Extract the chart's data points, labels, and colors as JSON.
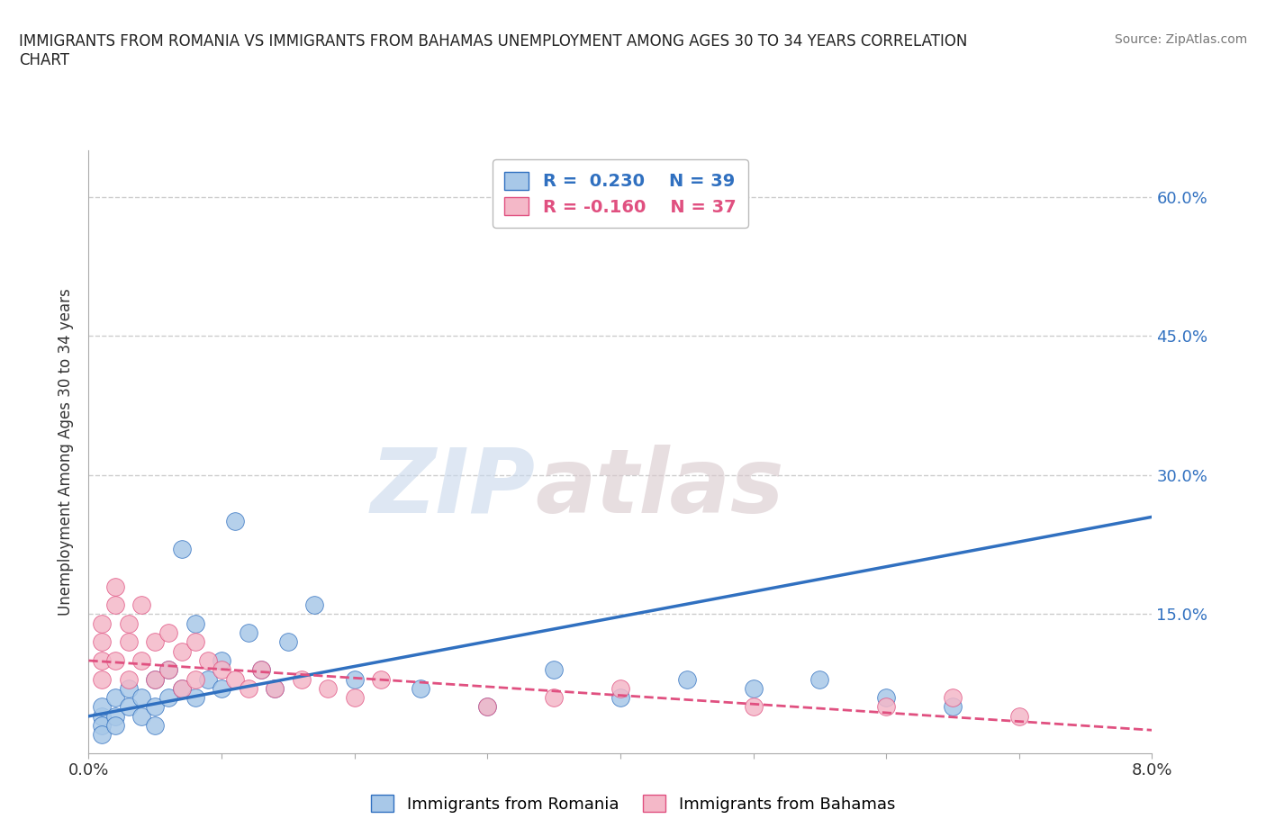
{
  "title": "IMMIGRANTS FROM ROMANIA VS IMMIGRANTS FROM BAHAMAS UNEMPLOYMENT AMONG AGES 30 TO 34 YEARS CORRELATION\nCHART",
  "source": "Source: ZipAtlas.com",
  "ylabel": "Unemployment Among Ages 30 to 34 years",
  "xlim": [
    0.0,
    0.08
  ],
  "ylim": [
    0.0,
    0.65
  ],
  "xticks": [
    0.0,
    0.01,
    0.02,
    0.03,
    0.04,
    0.05,
    0.06,
    0.07,
    0.08
  ],
  "ytick_labels": [
    "",
    "15.0%",
    "30.0%",
    "45.0%",
    "60.0%"
  ],
  "ytick_positions": [
    0.0,
    0.15,
    0.3,
    0.45,
    0.6
  ],
  "romania_color": "#a8c8e8",
  "bahamas_color": "#f4b8c8",
  "romania_line_color": "#3070c0",
  "bahamas_line_color": "#e05080",
  "romania_R": 0.23,
  "romania_N": 39,
  "bahamas_R": -0.16,
  "bahamas_N": 37,
  "romania_scatter_x": [
    0.001,
    0.001,
    0.001,
    0.001,
    0.002,
    0.002,
    0.002,
    0.003,
    0.003,
    0.004,
    0.004,
    0.005,
    0.005,
    0.005,
    0.006,
    0.006,
    0.007,
    0.007,
    0.008,
    0.008,
    0.009,
    0.01,
    0.01,
    0.011,
    0.012,
    0.013,
    0.014,
    0.015,
    0.017,
    0.02,
    0.025,
    0.03,
    0.035,
    0.04,
    0.045,
    0.05,
    0.055,
    0.06,
    0.065
  ],
  "romania_scatter_y": [
    0.04,
    0.03,
    0.05,
    0.02,
    0.04,
    0.06,
    0.03,
    0.05,
    0.07,
    0.04,
    0.06,
    0.05,
    0.08,
    0.03,
    0.06,
    0.09,
    0.07,
    0.22,
    0.14,
    0.06,
    0.08,
    0.07,
    0.1,
    0.25,
    0.13,
    0.09,
    0.07,
    0.12,
    0.16,
    0.08,
    0.07,
    0.05,
    0.09,
    0.06,
    0.08,
    0.07,
    0.08,
    0.06,
    0.05
  ],
  "bahamas_scatter_x": [
    0.001,
    0.001,
    0.001,
    0.001,
    0.002,
    0.002,
    0.002,
    0.003,
    0.003,
    0.003,
    0.004,
    0.004,
    0.005,
    0.005,
    0.006,
    0.006,
    0.007,
    0.007,
    0.008,
    0.008,
    0.009,
    0.01,
    0.011,
    0.012,
    0.013,
    0.014,
    0.016,
    0.018,
    0.02,
    0.022,
    0.03,
    0.035,
    0.04,
    0.05,
    0.06,
    0.065,
    0.07
  ],
  "bahamas_scatter_y": [
    0.1,
    0.14,
    0.08,
    0.12,
    0.16,
    0.1,
    0.18,
    0.12,
    0.08,
    0.14,
    0.1,
    0.16,
    0.12,
    0.08,
    0.13,
    0.09,
    0.11,
    0.07,
    0.12,
    0.08,
    0.1,
    0.09,
    0.08,
    0.07,
    0.09,
    0.07,
    0.08,
    0.07,
    0.06,
    0.08,
    0.05,
    0.06,
    0.07,
    0.05,
    0.05,
    0.06,
    0.04
  ],
  "watermark_zip": "ZIP",
  "watermark_atlas": "atlas",
  "background_color": "#ffffff",
  "grid_color": "#cccccc"
}
